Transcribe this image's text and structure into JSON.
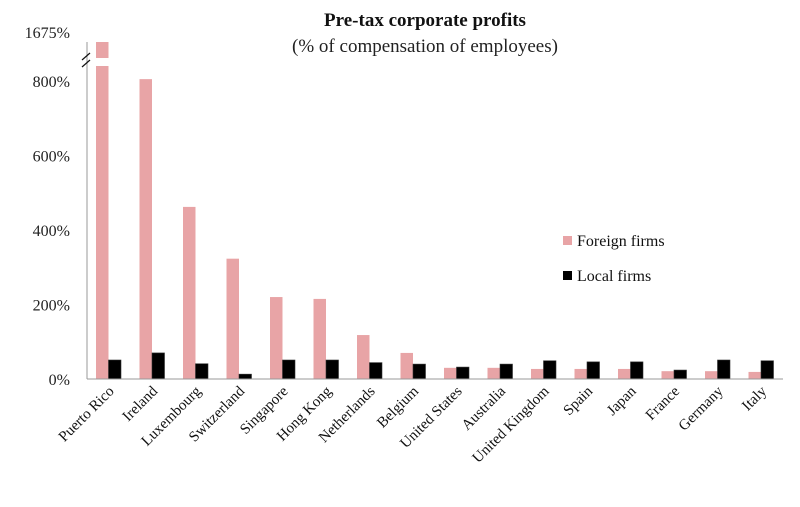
{
  "chart_data": {
    "type": "bar",
    "title": "Pre-tax corporate profits",
    "subtitle": "(% of compensation of employees)",
    "xlabel": "",
    "ylabel": "",
    "ylim": [
      0,
      850
    ],
    "axis_break": {
      "top_label": "1675%",
      "break_value": 1675
    },
    "yticks": [
      0,
      200,
      400,
      600,
      800
    ],
    "ytick_labels": [
      "0%",
      "200%",
      "400%",
      "600%",
      "800%"
    ],
    "grid": false,
    "legend_position": "center-right",
    "categories": [
      "Puerto Rico",
      "Ireland",
      "Luxembourg",
      "Switzerland",
      "Singapore",
      "Hong Kong",
      "Netherlands",
      "Belgium",
      "United States",
      "Australia",
      "United Kingdom",
      "Spain",
      "Japan",
      "France",
      "Germany",
      "Italy"
    ],
    "series": [
      {
        "name": "Foreign firms",
        "color": "#e8a4a6",
        "values": [
          1675,
          805,
          462,
          323,
          220,
          215,
          118,
          70,
          30,
          30,
          27,
          27,
          27,
          21,
          21,
          19
        ]
      },
      {
        "name": "Local firms",
        "color": "#000000",
        "values": [
          51,
          70,
          41,
          13,
          51,
          51,
          44,
          40,
          32,
          40,
          49,
          46,
          46,
          24,
          51,
          49
        ]
      }
    ]
  }
}
